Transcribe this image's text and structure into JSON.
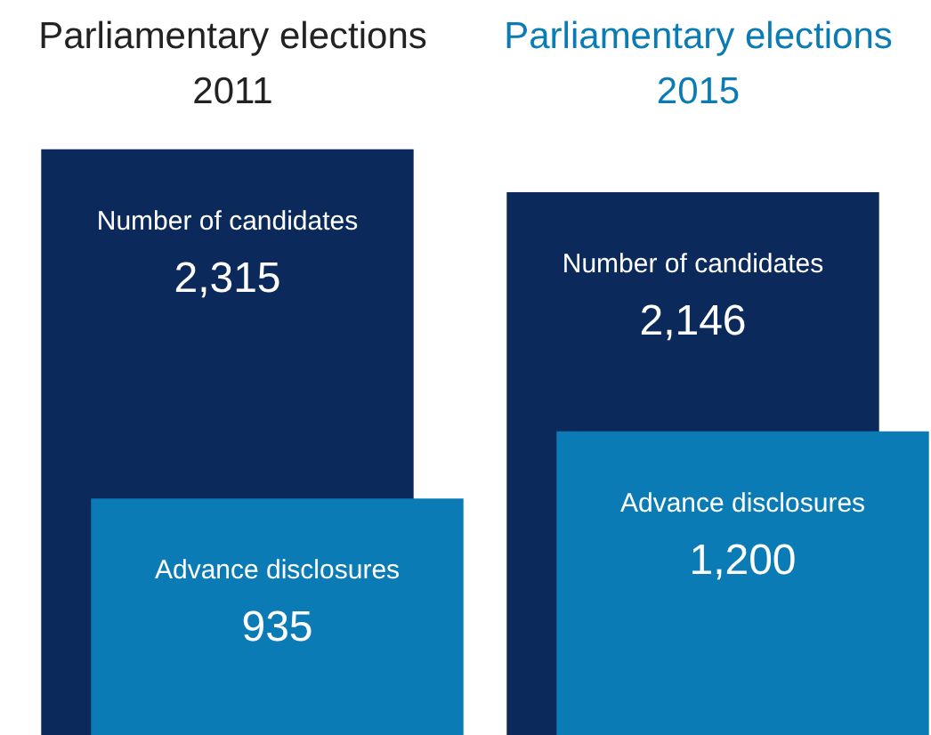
{
  "chart_data": {
    "type": "bar",
    "categories": [
      "Parliamentary elections 2011",
      "Parliamentary elections 2015"
    ],
    "series": [
      {
        "name": "Number of candidates",
        "color": "#0b2a5b",
        "values": [
          2315,
          2146
        ],
        "value_labels": [
          "2,315",
          "2,146"
        ]
      },
      {
        "name": "Advance disclosures",
        "color": "#0a7bb5",
        "values": [
          935,
          1200
        ],
        "value_labels": [
          "935",
          "1,200"
        ]
      }
    ],
    "legend": false
  }
}
